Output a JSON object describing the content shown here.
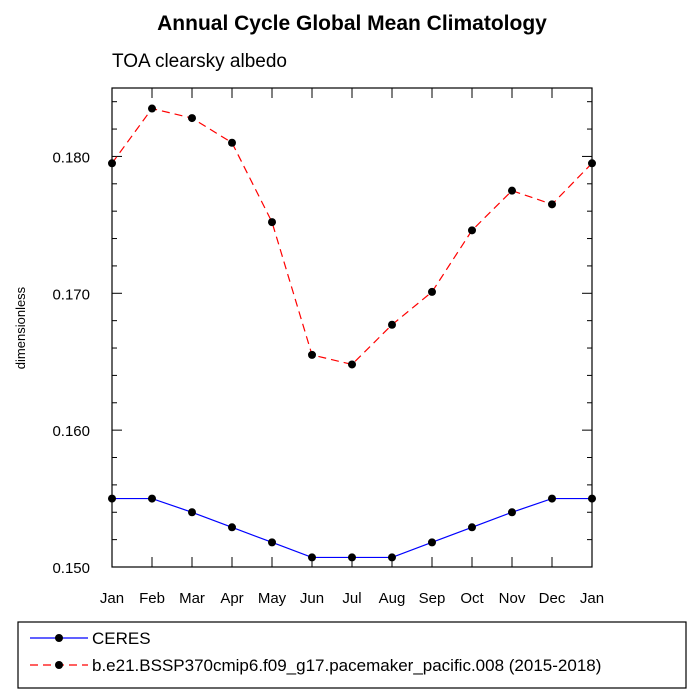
{
  "chart_data": {
    "type": "line",
    "title": "Annual Cycle Global Mean Climatology",
    "subtitle": "TOA clearsky albedo",
    "xlabel": "",
    "ylabel": "dimensionless",
    "categories": [
      "Jan",
      "Feb",
      "Mar",
      "Apr",
      "May",
      "Jun",
      "Jul",
      "Aug",
      "Sep",
      "Oct",
      "Nov",
      "Dec",
      "Jan"
    ],
    "ylim": [
      0.15,
      0.185
    ],
    "yticks": [
      0.15,
      0.16,
      0.17,
      0.18
    ],
    "ytick_labels": [
      "0.150",
      "0.160",
      "0.170",
      "0.180"
    ],
    "grid": false,
    "legend_position": "bottom",
    "series": [
      {
        "name": "CERES",
        "color": "#0000ff",
        "line_style": "solid",
        "values": [
          0.155,
          0.155,
          0.154,
          0.1529,
          0.1518,
          0.1507,
          0.1507,
          0.1507,
          0.1518,
          0.1529,
          0.154,
          0.155,
          0.155
        ]
      },
      {
        "name": "b.e21.BSSP370cmip6.f09_g17.pacemaker_pacific.008 (2015-2018)",
        "color": "#ff0000",
        "line_style": "dashed",
        "values": [
          0.1795,
          0.1835,
          0.1828,
          0.181,
          0.1752,
          0.1655,
          0.1648,
          0.1677,
          0.1701,
          0.1746,
          0.1775,
          0.1765,
          0.1795
        ]
      }
    ]
  }
}
